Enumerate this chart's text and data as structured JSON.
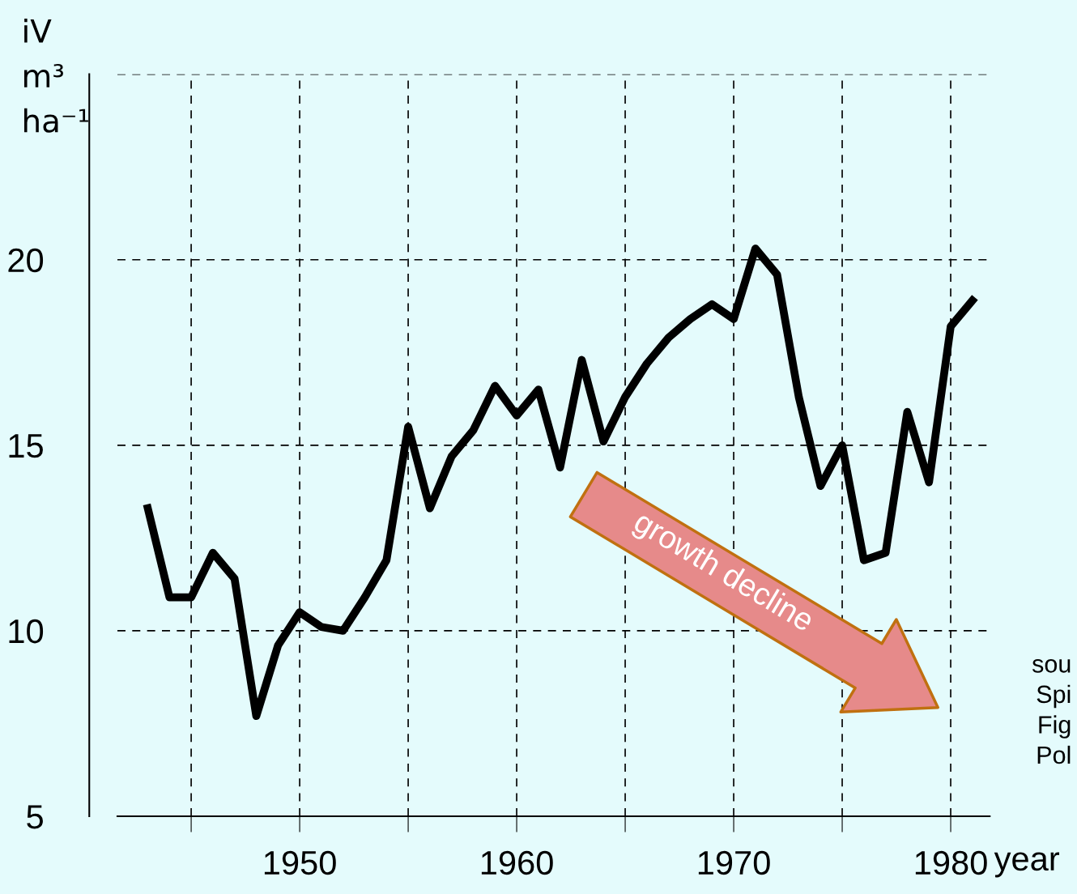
{
  "chart_data": {
    "type": "line",
    "xlabel": "year",
    "ylabel": "iV\nm³\nha⁻¹",
    "x": [
      1943,
      1944,
      1945,
      1946,
      1947,
      1948,
      1949,
      1950,
      1951,
      1952,
      1953,
      1954,
      1955,
      1956,
      1957,
      1958,
      1959,
      1960,
      1961,
      1962,
      1963,
      1964,
      1965,
      1966,
      1967,
      1968,
      1969,
      1970,
      1971,
      1972,
      1973,
      1974,
      1975,
      1976,
      1977,
      1978,
      1979,
      1980,
      1981
    ],
    "series": [
      {
        "color": "#000000",
        "values": [
          13.3,
          10.9,
          10.9,
          12.1,
          11.4,
          7.7,
          9.6,
          10.5,
          10.1,
          10.0,
          10.9,
          11.9,
          15.5,
          13.3,
          14.7,
          15.4,
          16.6,
          15.8,
          16.5,
          14.4,
          17.3,
          15.1,
          16.3,
          17.2,
          17.9,
          18.4,
          18.8,
          18.4,
          20.3,
          19.6,
          16.3,
          13.9,
          15.0,
          11.9,
          12.1,
          15.9,
          14.0,
          18.2,
          18.9
        ]
      }
    ],
    "xlim": [
      1941.6,
      1981.8
    ],
    "ylim": [
      5,
      25
    ],
    "xticks": [
      {
        "value": 1945,
        "label": null
      },
      1950,
      {
        "value": 1955,
        "label": null
      },
      1960,
      {
        "value": 1965,
        "label": null
      },
      1970,
      {
        "value": 1975,
        "label": null
      },
      1980
    ],
    "yticks": [
      5,
      10,
      15,
      20,
      {
        "value": 25,
        "label": null
      }
    ],
    "grid": true,
    "line_style": "solid",
    "marker": "none",
    "annotations": [
      "growth decline",
      "sou",
      "Spi",
      "Fig",
      "Pol"
    ]
  }
}
